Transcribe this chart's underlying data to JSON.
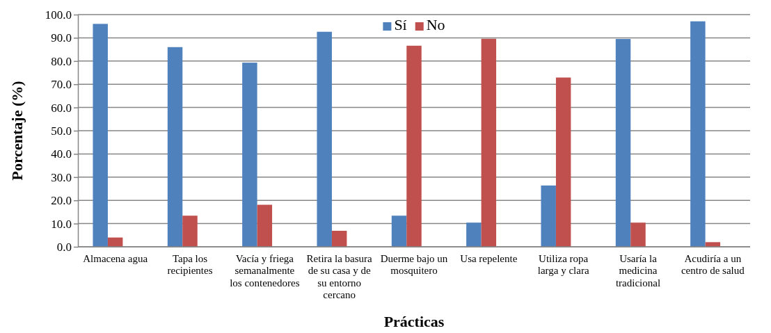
{
  "chart_data": {
    "type": "bar",
    "xlabel": "Prácticas",
    "ylabel": "Porcentaje (%)",
    "categories": [
      "Almacena agua",
      "Tapa los recipientes",
      "Vacía y friega semanalmente los contenedores",
      "Retira la basura de su casa y de su entorno cercano",
      "Duerme bajo un mosquitero",
      "Usa repelente",
      "Utiliza ropa larga y clara",
      "Usaría la medicina tradicional",
      "Acudiría a un centro de salud"
    ],
    "series": [
      {
        "name": "Sí",
        "color": "#4f81bd",
        "values": [
          96.0,
          86.0,
          79.3,
          92.6,
          13.4,
          10.4,
          26.4,
          89.5,
          97.1
        ]
      },
      {
        "name": "No",
        "color": "#c0504d",
        "values": [
          4.0,
          13.4,
          18.1,
          6.9,
          86.6,
          89.6,
          72.9,
          10.4,
          2.0
        ]
      }
    ],
    "ylim": [
      0,
      100
    ],
    "yticks": [
      {
        "value": 0,
        "label": "0.0"
      },
      {
        "value": 10,
        "label": "10.0"
      },
      {
        "value": 20,
        "label": "20.0"
      },
      {
        "value": 30,
        "label": "30.0"
      },
      {
        "value": 40,
        "label": "40.0"
      },
      {
        "value": 50,
        "label": "50.0"
      },
      {
        "value": 60,
        "label": "60.0"
      },
      {
        "value": 70,
        "label": "70.0"
      },
      {
        "value": 80,
        "label": "80.0"
      },
      {
        "value": 90,
        "label": "90.0"
      },
      {
        "value": 100,
        "label": "100.0"
      }
    ],
    "grid": "y",
    "legend": "top"
  }
}
